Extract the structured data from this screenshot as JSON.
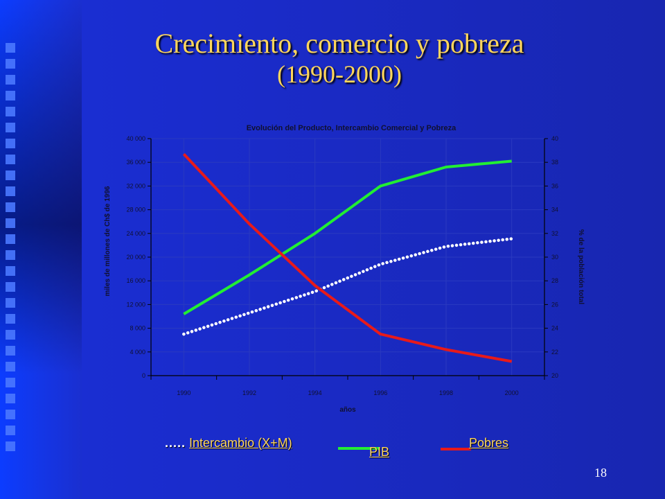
{
  "slide": {
    "title_line1": "Crecimiento, comercio y pobreza",
    "title_line2": "(1990-2000)",
    "page_number": "18"
  },
  "colors": {
    "pib": "#22ee33",
    "pobres": "#e81a1a",
    "intercambio": "#ffffff",
    "title": "#ffd65c"
  },
  "chart_data": {
    "type": "line",
    "title": "Evolución del Producto, Intercambio Comercial y Pobreza",
    "xlabel": "años",
    "ylabel_left": "miles de millones de Ch$ de 1996",
    "ylabel_right": "% de la población total",
    "x": [
      1990,
      1992,
      1994,
      1996,
      1998,
      2000
    ],
    "xlim": [
      1989,
      2001
    ],
    "ylim_left": [
      0,
      40000
    ],
    "ylim_right": [
      20,
      40
    ],
    "yticks_left": [
      "0",
      "4 000",
      "8 000",
      "12 000",
      "16 000",
      "20 000",
      "24 000",
      "28 000",
      "32 000",
      "36 000",
      "40 000"
    ],
    "yticks_right": [
      "20",
      "22",
      "24",
      "26",
      "28",
      "30",
      "32",
      "34",
      "36",
      "38",
      "40"
    ],
    "xticks": [
      "1990",
      "1992",
      "1994",
      "1996",
      "1998",
      "2000"
    ],
    "series": [
      {
        "name": "PIB",
        "axis": "left",
        "style": "solid",
        "x": [
          1990,
          1992,
          1994,
          1996,
          1998,
          2000
        ],
        "values": [
          10400,
          17000,
          24000,
          32000,
          35200,
          36200
        ]
      },
      {
        "name": "Intercambio (X+M)",
        "axis": "left",
        "style": "dotted",
        "x": [
          1990,
          1992,
          1994,
          1996,
          1998,
          2000
        ],
        "values": [
          7000,
          10600,
          14200,
          18800,
          21800,
          23100
        ]
      },
      {
        "name": "Pobres",
        "axis": "right",
        "style": "solid",
        "x": [
          1990,
          1992,
          1994,
          1996,
          1998,
          2000
        ],
        "values": [
          38.7,
          32.8,
          27.6,
          23.5,
          22.2,
          21.2
        ]
      }
    ],
    "legend": {
      "placement": "bottom",
      "labels": {
        "intercambio": "Intercambio (X+M)",
        "pib": "PIB",
        "pobres": "Pobres"
      }
    }
  }
}
